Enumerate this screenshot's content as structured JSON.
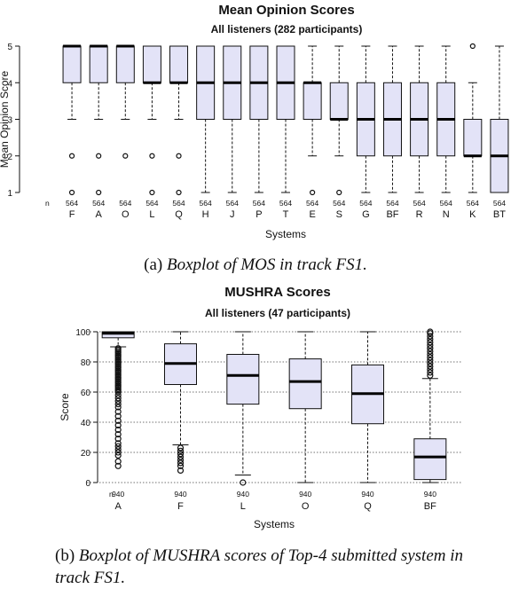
{
  "captions": {
    "a_label": "(a)",
    "a_text": "Boxplot of MOS in track FS1.",
    "b_label": "(b)",
    "b_text": "Boxplot of MUSHRA scores of Top-4 submitted system in track FS1."
  },
  "chart_data": [
    {
      "type": "boxplot",
      "title": "Mean Opinion Scores",
      "subtitle": "All listeners (282 participants)",
      "xlabel": "Systems",
      "ylabel": "Mean Opinion Score",
      "ylim": [
        1,
        5
      ],
      "yticks": [
        1,
        2,
        3,
        4,
        5
      ],
      "n_label": "n",
      "box_fill": "#e3e3f7",
      "grid": false,
      "categories": [
        "F",
        "A",
        "O",
        "L",
        "Q",
        "H",
        "J",
        "P",
        "T",
        "E",
        "S",
        "G",
        "BF",
        "R",
        "N",
        "K",
        "BT"
      ],
      "n": [
        564,
        564,
        564,
        564,
        564,
        564,
        564,
        564,
        564,
        564,
        564,
        564,
        564,
        564,
        564,
        564,
        564
      ],
      "boxes": [
        {
          "q1": 4,
          "median": 5,
          "q3": 5,
          "whisker_low": 3,
          "whisker_high": 5,
          "outliers": [
            2,
            1
          ]
        },
        {
          "q1": 4,
          "median": 5,
          "q3": 5,
          "whisker_low": 3,
          "whisker_high": 5,
          "outliers": [
            2,
            1
          ]
        },
        {
          "q1": 4,
          "median": 5,
          "q3": 5,
          "whisker_low": 3,
          "whisker_high": 5,
          "outliers": [
            2
          ]
        },
        {
          "q1": 4,
          "median": 4,
          "q3": 5,
          "whisker_low": 3,
          "whisker_high": 5,
          "outliers": [
            2,
            1
          ]
        },
        {
          "q1": 4,
          "median": 4,
          "q3": 5,
          "whisker_low": 3,
          "whisker_high": 5,
          "outliers": [
            2,
            1
          ]
        },
        {
          "q1": 3,
          "median": 4,
          "q3": 5,
          "whisker_low": 1,
          "whisker_high": 5,
          "outliers": []
        },
        {
          "q1": 3,
          "median": 4,
          "q3": 5,
          "whisker_low": 1,
          "whisker_high": 5,
          "outliers": []
        },
        {
          "q1": 3,
          "median": 4,
          "q3": 5,
          "whisker_low": 1,
          "whisker_high": 5,
          "outliers": []
        },
        {
          "q1": 3,
          "median": 4,
          "q3": 5,
          "whisker_low": 1,
          "whisker_high": 5,
          "outliers": []
        },
        {
          "q1": 3,
          "median": 4,
          "q3": 4,
          "whisker_low": 2,
          "whisker_high": 5,
          "outliers": [
            1
          ]
        },
        {
          "q1": 3,
          "median": 3,
          "q3": 4,
          "whisker_low": 2,
          "whisker_high": 5,
          "outliers": [
            1
          ]
        },
        {
          "q1": 2,
          "median": 3,
          "q3": 4,
          "whisker_low": 1,
          "whisker_high": 5,
          "outliers": []
        },
        {
          "q1": 2,
          "median": 3,
          "q3": 4,
          "whisker_low": 1,
          "whisker_high": 5,
          "outliers": []
        },
        {
          "q1": 2,
          "median": 3,
          "q3": 4,
          "whisker_low": 1,
          "whisker_high": 5,
          "outliers": []
        },
        {
          "q1": 2,
          "median": 3,
          "q3": 4,
          "whisker_low": 1,
          "whisker_high": 5,
          "outliers": []
        },
        {
          "q1": 2,
          "median": 2,
          "q3": 3,
          "whisker_low": 1,
          "whisker_high": 4,
          "outliers": [
            5
          ]
        },
        {
          "q1": 1,
          "median": 2,
          "q3": 3,
          "whisker_low": 1,
          "whisker_high": 5,
          "outliers": []
        }
      ]
    },
    {
      "type": "boxplot",
      "title": "MUSHRA Scores",
      "subtitle": "All listeners (47 participants)",
      "xlabel": "Systems",
      "ylabel": "Score",
      "ylim": [
        0,
        100
      ],
      "yticks": [
        0,
        20,
        40,
        60,
        80,
        100
      ],
      "n_label": "n",
      "box_fill": "#e3e3f7",
      "grid": true,
      "categories": [
        "A",
        "F",
        "L",
        "O",
        "Q",
        "BF"
      ],
      "n": [
        940,
        940,
        940,
        940,
        940,
        940
      ],
      "boxes": [
        {
          "q1": 96,
          "median": 99,
          "q3": 100,
          "whisker_low": 90,
          "whisker_high": 100,
          "outliers": [
            89,
            88,
            87,
            86,
            85,
            84,
            83,
            82,
            81,
            80,
            79,
            78,
            77,
            76,
            75,
            74,
            73,
            72,
            71,
            70,
            69,
            68,
            67,
            66,
            65,
            64,
            63,
            62,
            61,
            60,
            58,
            56,
            54,
            52,
            50,
            47,
            44,
            41,
            38,
            35,
            32,
            29,
            26,
            24,
            22,
            20,
            18,
            14,
            11
          ]
        },
        {
          "q1": 65,
          "median": 79,
          "q3": 92,
          "whisker_low": 25,
          "whisker_high": 100,
          "outliers": [
            23,
            21,
            19,
            17,
            15,
            13,
            11,
            8
          ]
        },
        {
          "q1": 52,
          "median": 71,
          "q3": 85,
          "whisker_low": 5,
          "whisker_high": 100,
          "outliers": [
            0
          ]
        },
        {
          "q1": 49,
          "median": 67,
          "q3": 82,
          "whisker_low": 0,
          "whisker_high": 100,
          "outliers": []
        },
        {
          "q1": 39,
          "median": 59,
          "q3": 78,
          "whisker_low": 0,
          "whisker_high": 100,
          "outliers": []
        },
        {
          "q1": 2,
          "median": 17,
          "q3": 29,
          "whisker_low": 0,
          "whisker_high": 69,
          "outliers": [
            71,
            73,
            75,
            77,
            79,
            81,
            83,
            85,
            87,
            89,
            91,
            93,
            95,
            97,
            99,
            100
          ]
        }
      ]
    }
  ]
}
